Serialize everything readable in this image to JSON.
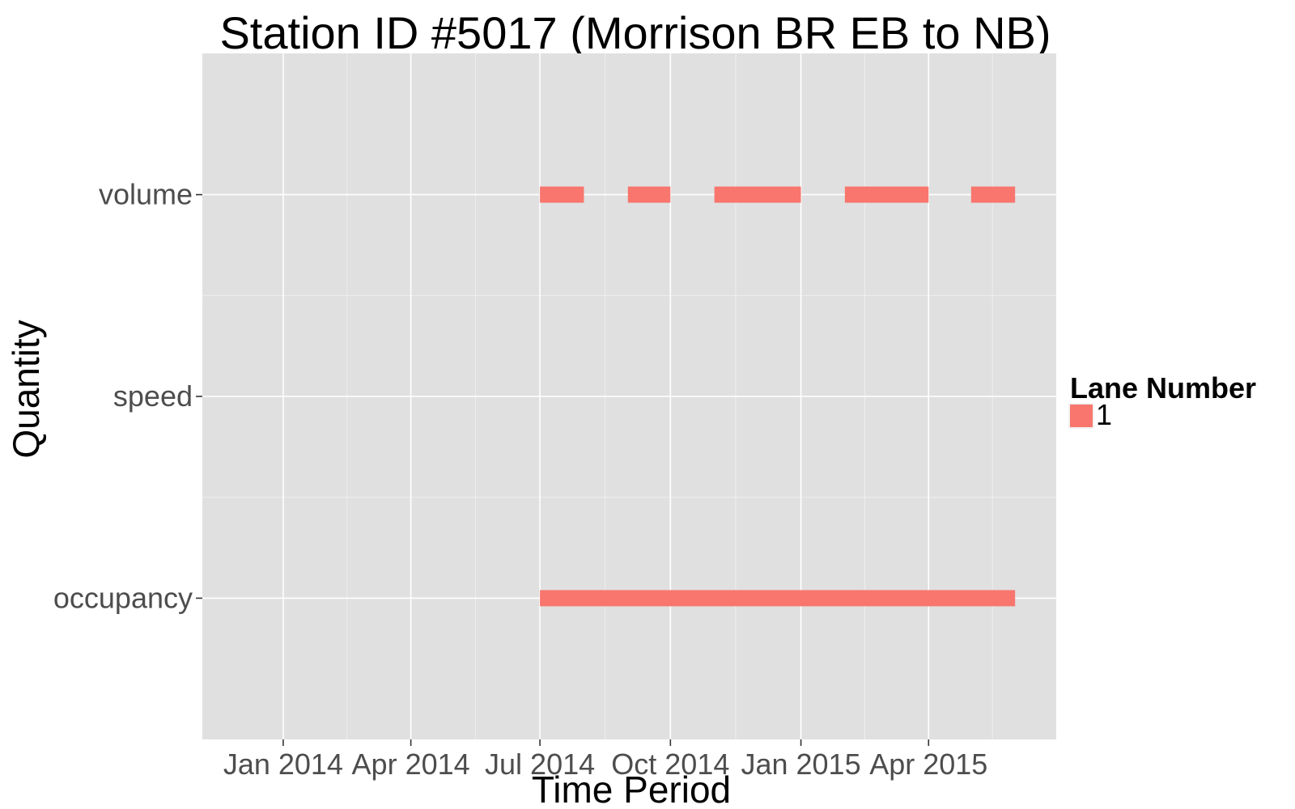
{
  "chart_data": {
    "type": "timeline",
    "title": "Station ID #5017 (Morrison BR EB to NB)",
    "xlabel": "Time Period",
    "ylabel": "Quantity",
    "x_ticks": [
      {
        "label": "Jan 2014",
        "date": "2014-01-01"
      },
      {
        "label": "Apr 2014",
        "date": "2014-04-01"
      },
      {
        "label": "Jul 2014",
        "date": "2014-07-01"
      },
      {
        "label": "Oct 2014",
        "date": "2014-10-01"
      },
      {
        "label": "Jan 2015",
        "date": "2015-01-01"
      },
      {
        "label": "Apr 2015",
        "date": "2015-04-01"
      }
    ],
    "xlim": [
      "2013-11-05",
      "2015-06-30"
    ],
    "categories": [
      "occupancy",
      "speed",
      "volume"
    ],
    "legend": {
      "title": "Lane Number",
      "placement": "right",
      "entries": [
        {
          "label": "1",
          "color": "#f8766d"
        }
      ]
    },
    "series": [
      {
        "name": "1",
        "color": "#f8766d",
        "segments": [
          {
            "category": "volume",
            "start": "2014-07-01",
            "end": "2014-08-01"
          },
          {
            "category": "volume",
            "start": "2014-09-01",
            "end": "2014-10-01"
          },
          {
            "category": "volume",
            "start": "2014-11-01",
            "end": "2015-01-01"
          },
          {
            "category": "volume",
            "start": "2015-02-01",
            "end": "2015-04-01"
          },
          {
            "category": "volume",
            "start": "2015-05-01",
            "end": "2015-06-01"
          },
          {
            "category": "occupancy",
            "start": "2014-07-01",
            "end": "2015-06-01"
          }
        ]
      }
    ],
    "grid": true,
    "panel_color": "#e0e0e0",
    "grid_color": "#ffffff"
  }
}
